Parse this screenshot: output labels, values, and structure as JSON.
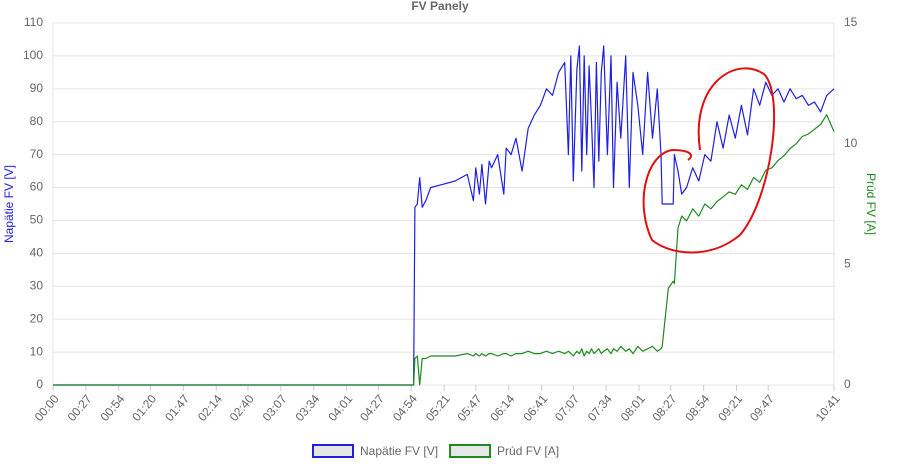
{
  "chart_data": {
    "type": "line",
    "title": "FV Panely",
    "y_label": "Napätie FV [V]",
    "y2_label": "Prúd FV [A]",
    "x": [
      0,
      296,
      297,
      299,
      301,
      303,
      306,
      310,
      320,
      330,
      340,
      345,
      347,
      350,
      352,
      355,
      358,
      360,
      365,
      370,
      372,
      376,
      380,
      385,
      390,
      395,
      400,
      405,
      410,
      415,
      420,
      423,
      425,
      427,
      430,
      432,
      434,
      436,
      438,
      440,
      442,
      444,
      446,
      448,
      450,
      452,
      455,
      458,
      460,
      463,
      466,
      470,
      473,
      476,
      480,
      484,
      488,
      492,
      496,
      499,
      500,
      505,
      509,
      510,
      513,
      516,
      520,
      525,
      530,
      535,
      540,
      545,
      550,
      555,
      560,
      565,
      570,
      575,
      580,
      585,
      590,
      595,
      600,
      605,
      610,
      615,
      620,
      625,
      630,
      635,
      641
    ],
    "xlim": [
      0,
      641
    ],
    "xticks": [
      {
        "value": 0,
        "label": "00:00"
      },
      {
        "value": 27,
        "label": "00:27"
      },
      {
        "value": 54,
        "label": "00:54"
      },
      {
        "value": 80,
        "label": "01:20"
      },
      {
        "value": 107,
        "label": "01:47"
      },
      {
        "value": 134,
        "label": "02:14"
      },
      {
        "value": 160,
        "label": "02:40"
      },
      {
        "value": 187,
        "label": "03:07"
      },
      {
        "value": 214,
        "label": "03:34"
      },
      {
        "value": 241,
        "label": "04:01"
      },
      {
        "value": 267,
        "label": "04:27"
      },
      {
        "value": 294,
        "label": "04:54"
      },
      {
        "value": 321,
        "label": "05:21"
      },
      {
        "value": 347,
        "label": "05:47"
      },
      {
        "value": 374,
        "label": "06:14"
      },
      {
        "value": 401,
        "label": "06:41"
      },
      {
        "value": 427,
        "label": "07:07"
      },
      {
        "value": 454,
        "label": "07:34"
      },
      {
        "value": 481,
        "label": "08:01"
      },
      {
        "value": 507,
        "label": "08:27"
      },
      {
        "value": 534,
        "label": "08:54"
      },
      {
        "value": 561,
        "label": "09:21"
      },
      {
        "value": 587,
        "label": "09:47"
      },
      {
        "value": 641,
        "label": "10:41"
      }
    ],
    "ylim": [
      0,
      110
    ],
    "yticks": [
      0,
      10,
      20,
      30,
      40,
      50,
      60,
      70,
      80,
      90,
      100,
      110
    ],
    "y2lim": [
      0,
      15
    ],
    "y2ticks": [
      0,
      5,
      10,
      15
    ],
    "grid": true,
    "legend": "bottom",
    "series": [
      {
        "name": "Napätie FV [V]",
        "color": "#1f1fe0",
        "values": [
          0,
          0,
          54,
          55,
          63,
          54,
          56,
          60,
          61,
          62,
          64,
          56,
          66,
          58,
          67,
          55,
          68,
          66,
          70,
          58,
          72,
          70,
          75,
          65,
          78,
          82,
          85,
          90,
          88,
          95,
          98,
          70,
          100,
          62,
          96,
          103,
          65,
          100,
          70,
          97,
          80,
          60,
          98,
          68,
          95,
          103,
          70,
          100,
          60,
          92,
          75,
          100,
          60,
          95,
          85,
          70,
          95,
          75,
          90,
          70,
          55,
          55,
          55,
          70,
          65,
          58,
          60,
          66,
          62,
          70,
          68,
          80,
          72,
          82,
          75,
          85,
          76,
          90,
          85,
          92,
          88,
          90,
          86,
          90,
          87,
          88,
          85,
          86,
          83,
          88,
          90
        ]
      },
      {
        "name": "Prúd FV [A]",
        "color": "#1f8a1f",
        "axis": "y2",
        "values": [
          0,
          0,
          1.1,
          1.2,
          0,
          1.1,
          1.1,
          1.2,
          1.2,
          1.2,
          1.3,
          1.2,
          1.3,
          1.2,
          1.3,
          1.2,
          1.3,
          1.3,
          1.2,
          1.3,
          1.3,
          1.2,
          1.3,
          1.3,
          1.4,
          1.3,
          1.3,
          1.4,
          1.3,
          1.4,
          1.3,
          1.4,
          1.3,
          1.2,
          1.4,
          1.3,
          1.5,
          1.2,
          1.4,
          1.3,
          1.5,
          1.3,
          1.4,
          1.5,
          1.3,
          1.4,
          1.5,
          1.3,
          1.5,
          1.4,
          1.6,
          1.4,
          1.5,
          1.3,
          1.6,
          1.4,
          1.5,
          1.6,
          1.4,
          1.5,
          1.6,
          4.0,
          4.3,
          4.2,
          6.5,
          7.0,
          6.8,
          7.3,
          7.0,
          7.5,
          7.3,
          7.6,
          7.8,
          8.0,
          7.9,
          8.3,
          8.1,
          8.6,
          8.4,
          8.9,
          9.0,
          9.3,
          9.5,
          9.8,
          10.0,
          10.3,
          10.4,
          10.6,
          10.8,
          11.2,
          10.5
        ]
      }
    ]
  }
}
